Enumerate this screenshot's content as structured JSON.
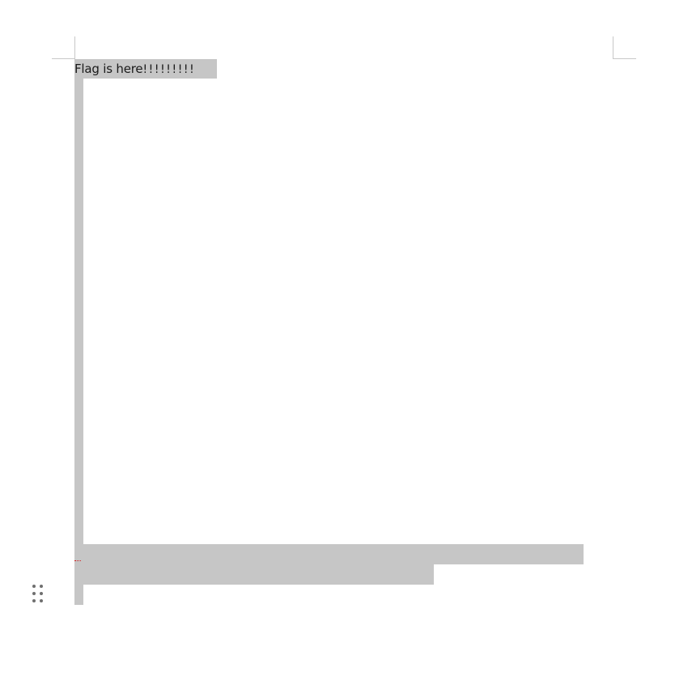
{
  "document": {
    "heading_text": "Flag is here",
    "heading_exclaims": "!!!!!!!!!"
  },
  "icons": {
    "drag_handle": "drag-handle-icon",
    "spell_mark": "spellcheck-underline-icon"
  },
  "colors": {
    "selection": "#c6c6c6",
    "text": "#1a1a1a",
    "crop_marks": "#c8c8c8",
    "handle_dots": "#6f6f6f"
  }
}
